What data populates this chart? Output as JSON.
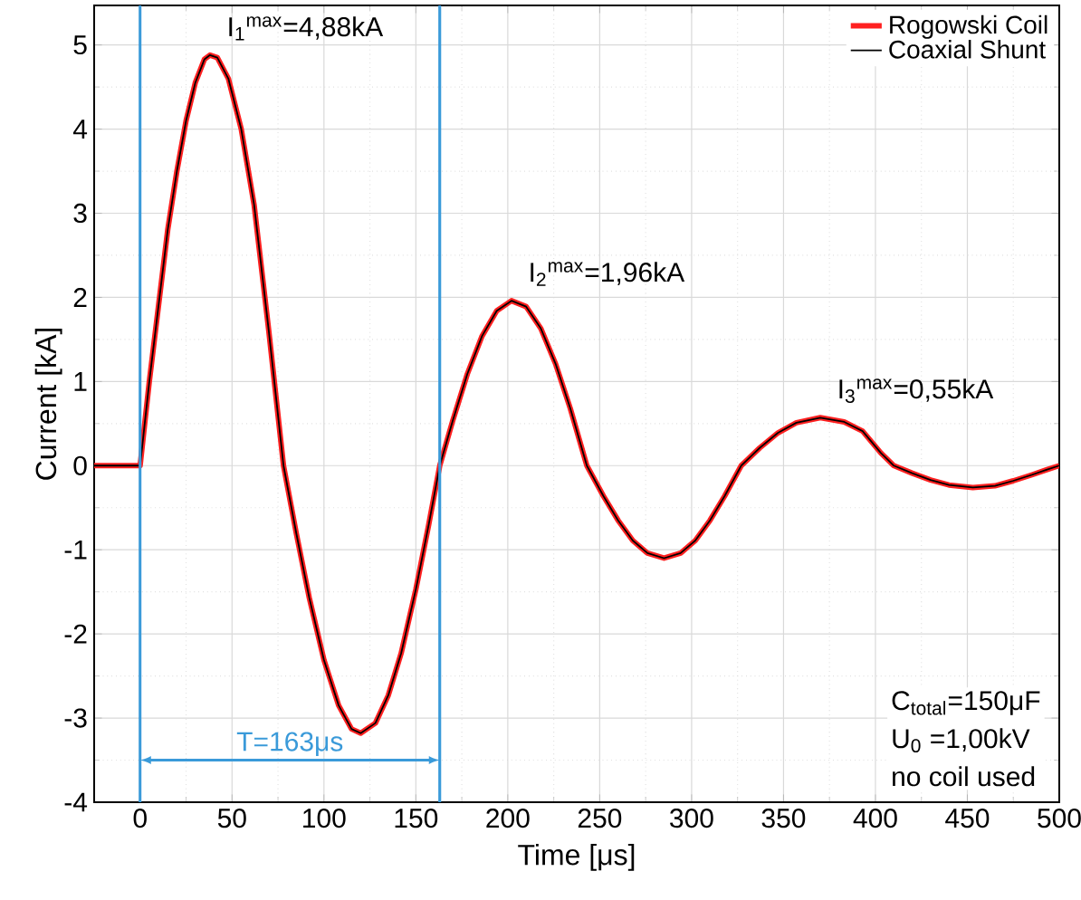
{
  "chart_data": {
    "type": "line",
    "xlabel": "Time [μs]",
    "ylabel": "Current [kA]",
    "x": [
      -25,
      -10,
      -1,
      0,
      5,
      10,
      15,
      20,
      25,
      30,
      35,
      38,
      42,
      48,
      55,
      62,
      70,
      78,
      85,
      92,
      100,
      108,
      115,
      120,
      128,
      135,
      142,
      150,
      157,
      163,
      170,
      178,
      186,
      194,
      202,
      210,
      218,
      226,
      234,
      243,
      252,
      260,
      268,
      276,
      285,
      294,
      302,
      310,
      318,
      327,
      337,
      347,
      357,
      370,
      383,
      393,
      403,
      410,
      420,
      430,
      440,
      453,
      465,
      475,
      485,
      493,
      500
    ],
    "series": [
      {
        "name": "Rogowski Coil",
        "color": "#ff2020",
        "values": [
          0,
          0,
          0,
          0,
          1.0,
          1.9,
          2.8,
          3.5,
          4.1,
          4.55,
          4.83,
          4.88,
          4.85,
          4.6,
          4.0,
          3.1,
          1.6,
          0,
          -0.81,
          -1.57,
          -2.31,
          -2.85,
          -3.13,
          -3.18,
          -3.06,
          -2.73,
          -2.23,
          -1.47,
          -0.7,
          0,
          0.53,
          1.09,
          1.54,
          1.84,
          1.96,
          1.89,
          1.63,
          1.21,
          0.68,
          0,
          -0.36,
          -0.65,
          -0.89,
          -1.04,
          -1.1,
          -1.04,
          -0.89,
          -0.65,
          -0.36,
          0,
          0.21,
          0.39,
          0.51,
          0.57,
          0.52,
          0.41,
          0.15,
          0,
          -0.09,
          -0.17,
          -0.23,
          -0.26,
          -0.24,
          -0.18,
          -0.11,
          -0.05,
          0
        ]
      },
      {
        "name": "Coaxial Shunt",
        "color": "#000000",
        "values": [
          0,
          0,
          0,
          0,
          1.0,
          1.9,
          2.8,
          3.5,
          4.1,
          4.55,
          4.83,
          4.88,
          4.85,
          4.6,
          4.0,
          3.1,
          1.6,
          0,
          -0.81,
          -1.57,
          -2.31,
          -2.85,
          -3.13,
          -3.18,
          -3.06,
          -2.73,
          -2.23,
          -1.47,
          -0.7,
          0,
          0.53,
          1.09,
          1.54,
          1.84,
          1.96,
          1.89,
          1.63,
          1.21,
          0.68,
          0,
          -0.36,
          -0.65,
          -0.89,
          -1.04,
          -1.1,
          -1.04,
          -0.89,
          -0.65,
          -0.36,
          0,
          0.21,
          0.39,
          0.51,
          0.57,
          0.52,
          0.41,
          0.15,
          0,
          -0.09,
          -0.17,
          -0.23,
          -0.26,
          -0.24,
          -0.18,
          -0.11,
          -0.05,
          0
        ]
      }
    ],
    "xlim": [
      -25,
      500
    ],
    "ylim": [
      -4,
      5.47
    ],
    "xticks": [
      0,
      50,
      100,
      150,
      200,
      250,
      300,
      350,
      400,
      450,
      500
    ],
    "yticks": [
      -4,
      -3,
      -2,
      -1,
      0,
      1,
      2,
      3,
      4,
      5
    ],
    "grid": true,
    "legend": "top right",
    "ref_lines": [
      {
        "axis": "x",
        "value": 0,
        "color": "#3a9ad9"
      },
      {
        "axis": "x",
        "value": 163,
        "color": "#3a9ad9"
      }
    ],
    "annotations": [
      {
        "text": "I$_{1}$$^{max}$=4,88kA",
        "x": 38,
        "y": 4.88
      },
      {
        "text": "I$_{2}$$^{max}$=1,96kA",
        "x": 202,
        "y": 1.96
      },
      {
        "text": "I$_{3}$$^{max}$=0,55kA",
        "x": 370,
        "y": 0.57
      },
      "T=163μs",
      "C$_{total}$=150μF",
      "U$_{0}$ =1,00kV",
      "no coil used"
    ]
  }
}
